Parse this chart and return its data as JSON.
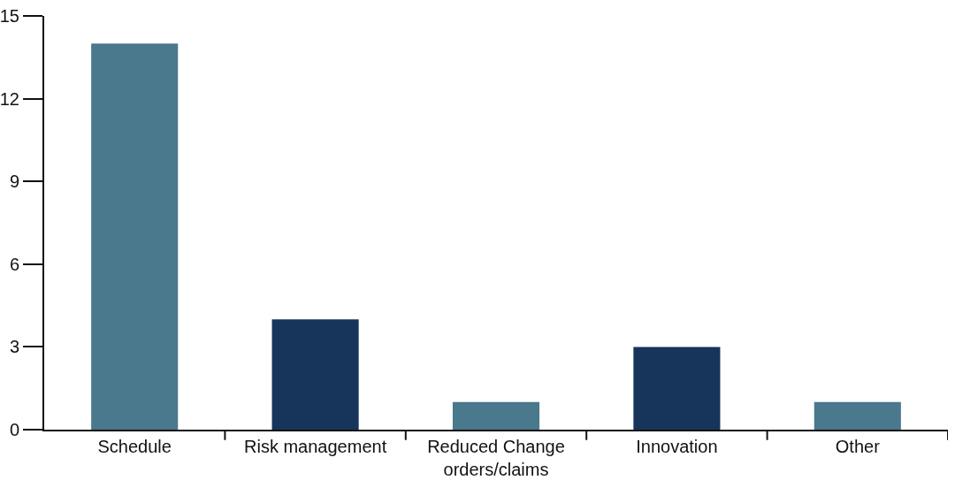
{
  "chart_data": {
    "type": "bar",
    "categories": [
      "Schedule",
      "Risk management",
      "Reduced Change orders/claims",
      "Innovation",
      "Other"
    ],
    "values": [
      14,
      4,
      1,
      3,
      1
    ],
    "colors": [
      "#4a788c",
      "#17345a",
      "#4a788c",
      "#17345a",
      "#4a788c"
    ],
    "ylim": [
      0,
      15
    ],
    "yticks": [
      0,
      3,
      6,
      9,
      12,
      15
    ],
    "grid": false
  }
}
